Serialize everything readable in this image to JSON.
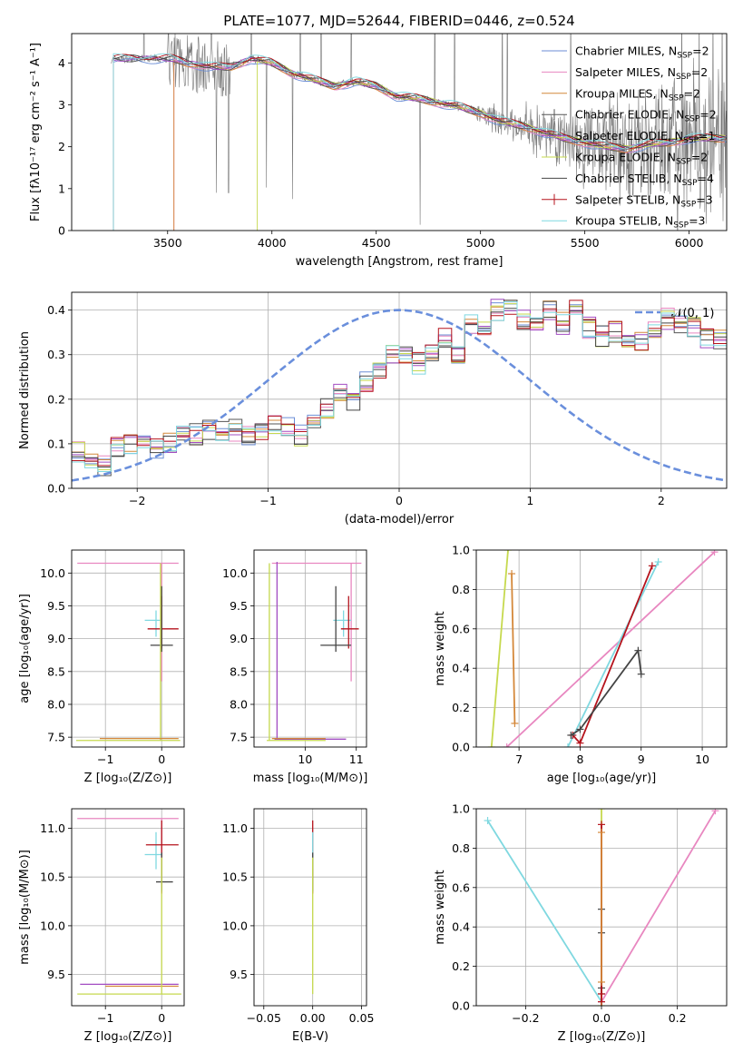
{
  "figure_title": "PLATE=1077, MJD=52644, FIBERID=0446, z=0.524",
  "colors": {
    "chabrier_miles": "#6b8ed6",
    "salpeter_miles": "#e887c0",
    "kroupa_miles": "#d4883a",
    "chabrier_elodie": "#555555",
    "salpeter_elodie": "#a24cc2",
    "kroupa_elodie": "#c6d94e",
    "chabrier_stelib": "#444444",
    "salpeter_stelib": "#b5131c",
    "kroupa_stelib": "#7fd8e0",
    "normal_curve": "#6a8fdc",
    "data_spectrum": "#777777"
  },
  "chart_data": [
    {
      "id": "spectrum",
      "type": "line",
      "title": "PLATE=1077, MJD=52644, FIBERID=0446, z=0.524",
      "xlabel": "wavelength [Angstrom, rest frame]",
      "ylabel": "Flux [f_λ 10^-17 erg cm^-2 s^-1 A^-1]",
      "xlim": [
        3040,
        6180
      ],
      "ylim": [
        0,
        4.7
      ],
      "xticks": [
        3500,
        4000,
        4500,
        5000,
        5500,
        6000
      ],
      "yticks": [
        0,
        1,
        2,
        3,
        4
      ],
      "grid": false,
      "legend_position": "top-right",
      "legend": [
        {
          "label": "Chabrier MILES, N_SSP=2",
          "color_key": "chabrier_miles",
          "marker": "line"
        },
        {
          "label": "Salpeter MILES, N_SSP=2",
          "color_key": "salpeter_miles",
          "marker": "line"
        },
        {
          "label": "Kroupa MILES, N_SSP=2",
          "color_key": "kroupa_miles",
          "marker": "line"
        },
        {
          "label": "Chabrier ELODIE, N_SSP=2",
          "color_key": "chabrier_elodie",
          "marker": "plus"
        },
        {
          "label": "Salpeter ELODIE, N_SSP=1",
          "color_key": "salpeter_elodie",
          "marker": "line"
        },
        {
          "label": "Kroupa ELODIE, N_SSP=2",
          "color_key": "kroupa_elodie",
          "marker": "line"
        },
        {
          "label": "Chabrier STELIB, N_SSP=4",
          "color_key": "chabrier_stelib",
          "marker": "line"
        },
        {
          "label": "Salpeter STELIB, N_SSP=3",
          "color_key": "salpeter_stelib",
          "marker": "plus"
        },
        {
          "label": "Kroupa STELIB, N_SSP=3",
          "color_key": "kroupa_stelib",
          "marker": "line"
        }
      ],
      "model_continuum": {
        "x": [
          3520,
          3600,
          3700,
          3800,
          3900,
          4000,
          4100,
          4200,
          4300,
          4400,
          4500,
          4600,
          4700,
          4800,
          4900,
          5000,
          5100,
          5200,
          5300,
          5400,
          5500,
          5600,
          5700,
          5800,
          5900,
          6000
        ],
        "y": [
          4.1,
          4.0,
          3.9,
          3.9,
          4.1,
          4.0,
          3.75,
          3.6,
          3.45,
          3.55,
          3.45,
          3.2,
          3.15,
          3.05,
          2.95,
          2.8,
          2.6,
          2.5,
          2.35,
          2.2,
          2.1,
          2.0,
          1.95,
          2.05,
          2.1,
          2.2
        ]
      },
      "model_cutoffs": [
        {
          "color_key": "kroupa_stelib",
          "x": 3240
        },
        {
          "color_key": "salpeter_stelib",
          "x": 3240
        },
        {
          "color_key": "salpeter_miles",
          "x": 3530
        },
        {
          "color_key": "kroupa_miles",
          "x": 3530
        },
        {
          "color_key": "kroupa_elodie",
          "x": 3930
        }
      ],
      "observed_spectrum_note": "noisy observed flux, grey"
    },
    {
      "id": "residual_histogram",
      "type": "histogram",
      "xlabel": "(data-model)/error",
      "ylabel": "Normed distribution",
      "xlim": [
        -2.5,
        2.5
      ],
      "ylim": [
        0,
        0.44
      ],
      "xticks": [
        -2,
        -1,
        0,
        1,
        2
      ],
      "yticks": [
        0.0,
        0.1,
        0.2,
        0.3,
        0.4
      ],
      "grid": true,
      "legend_position": "top-right",
      "legend": [
        {
          "label": "N(0, 1)",
          "color_key": "normal_curve",
          "style": "dashed"
        }
      ],
      "bin_edges_start": -2.5,
      "bin_width": 0.1,
      "base_distribution": [
        0.08,
        0.06,
        0.05,
        0.09,
        0.1,
        0.1,
        0.09,
        0.1,
        0.12,
        0.12,
        0.13,
        0.13,
        0.13,
        0.12,
        0.13,
        0.14,
        0.14,
        0.12,
        0.16,
        0.18,
        0.21,
        0.2,
        0.24,
        0.27,
        0.3,
        0.3,
        0.28,
        0.31,
        0.34,
        0.3,
        0.37,
        0.35,
        0.4,
        0.41,
        0.38,
        0.36,
        0.4,
        0.37,
        0.4,
        0.36,
        0.34,
        0.35,
        0.34,
        0.33,
        0.35,
        0.38,
        0.37,
        0.36,
        0.34,
        0.33,
        0.34,
        0.32,
        0.35,
        0.3,
        0.33,
        0.3,
        0.28,
        0.25,
        0.27,
        0.22,
        0.2,
        0.21,
        0.2,
        0.17,
        0.15,
        0.16,
        0.13,
        0.1,
        0.1,
        0.09,
        0.08,
        0.07,
        0.07,
        0.06,
        0.06,
        0.05,
        0.05,
        0.04,
        0.04,
        0.03,
        0.03,
        0.03,
        0.02,
        0.03,
        0.02,
        0.02,
        0.02,
        0.02,
        0.03,
        0.02,
        0.02,
        0.02,
        0.02,
        0.02,
        0.02,
        0.02,
        0.02,
        0.02,
        0.02,
        0.02
      ],
      "normal_curve": {
        "mu": 0,
        "sigma": 1,
        "peak": 0.4
      }
    },
    {
      "id": "age_vs_Z",
      "type": "scatter",
      "xlabel": "Z [log10(Z/Z_sun)]",
      "ylabel": "age [log10(age/yr)]",
      "xlim": [
        -1.6,
        0.4
      ],
      "ylim": [
        7.35,
        10.35
      ],
      "xticks": [
        -1,
        0
      ],
      "yticks": [
        7.5,
        8.0,
        8.5,
        9.0,
        9.5,
        10.0
      ],
      "grid": true,
      "errorbars": [
        {
          "color_key": "salpeter_miles",
          "x": 0.0,
          "y": 10.15,
          "xerr": [
            1.5,
            0.3
          ],
          "yerr": [
            1.8,
            0.0
          ]
        },
        {
          "color_key": "kroupa_stelib",
          "x": -0.1,
          "y": 9.28,
          "xerr": [
            0.2,
            0.1
          ],
          "yerr": [
            0.25,
            0.15
          ]
        },
        {
          "color_key": "salpeter_stelib",
          "x": 0.0,
          "y": 9.15,
          "xerr": [
            0.25,
            0.3
          ],
          "yerr": [
            0.3,
            0.5
          ]
        },
        {
          "color_key": "chabrier_stelib",
          "x": 0.0,
          "y": 8.9,
          "xerr": [
            0.2,
            0.2
          ],
          "yerr": [
            0.1,
            0.9
          ]
        },
        {
          "color_key": "kroupa_elodie",
          "x": -0.02,
          "y": 7.45,
          "xerr": [
            1.5,
            0.35
          ],
          "yerr": [
            0.0,
            2.7
          ]
        },
        {
          "color_key": "kroupa_miles",
          "x": 0.0,
          "y": 7.48,
          "xerr": [
            1.1,
            0.3
          ],
          "yerr": [
            0.0,
            0.0
          ]
        }
      ]
    },
    {
      "id": "age_vs_mass",
      "type": "scatter",
      "xlabel": "mass [log10(M/M_sun)]",
      "ylabel": "",
      "xlim": [
        9.0,
        11.2
      ],
      "ylim": [
        7.35,
        10.35
      ],
      "xticks": [
        10,
        11
      ],
      "yticks": [
        7.5,
        8.0,
        8.5,
        9.0,
        9.5,
        10.0
      ],
      "grid": true,
      "errorbars": [
        {
          "color_key": "salpeter_miles",
          "x": 10.9,
          "y": 10.15,
          "xerr": [
            1.55,
            0.2
          ],
          "yerr": [
            1.8,
            0.0
          ]
        },
        {
          "color_key": "kroupa_stelib",
          "x": 10.75,
          "y": 9.28,
          "xerr": [
            0.2,
            0.15
          ],
          "yerr": [
            0.25,
            0.15
          ]
        },
        {
          "color_key": "salpeter_stelib",
          "x": 10.85,
          "y": 9.15,
          "xerr": [
            0.15,
            0.2
          ],
          "yerr": [
            0.3,
            0.5
          ]
        },
        {
          "color_key": "chabrier_stelib",
          "x": 10.6,
          "y": 8.9,
          "xerr": [
            0.3,
            0.3
          ],
          "yerr": [
            0.1,
            0.9
          ]
        },
        {
          "color_key": "kroupa_elodie",
          "x": 9.3,
          "y": 7.45,
          "xerr": [
            0.05,
            1.1
          ],
          "yerr": [
            0.0,
            2.7
          ]
        },
        {
          "color_key": "salpeter_elodie",
          "x": 9.45,
          "y": 7.47,
          "xerr": [
            0.05,
            1.35
          ],
          "yerr": [
            0.0,
            2.7
          ]
        },
        {
          "color_key": "kroupa_miles",
          "x": 9.4,
          "y": 7.48,
          "xerr": [
            0.05,
            1.0
          ],
          "yerr": [
            0.0,
            0.0
          ]
        }
      ]
    },
    {
      "id": "weight_vs_age",
      "type": "line",
      "xlabel": "age [log10(age/yr)]",
      "ylabel": "mass weight",
      "xlim": [
        6.3,
        10.4
      ],
      "ylim": [
        0,
        1
      ],
      "xticks": [
        7,
        8,
        9,
        10
      ],
      "yticks": [
        0.0,
        0.2,
        0.4,
        0.6,
        0.8,
        1.0
      ],
      "grid": true,
      "series": [
        {
          "color_key": "kroupa_elodie",
          "x": [
            6.55,
            6.82
          ],
          "y": [
            0.0,
            1.0
          ]
        },
        {
          "color_key": "kroupa_miles",
          "x": [
            6.88,
            6.93
          ],
          "y": [
            0.88,
            0.12
          ]
        },
        {
          "color_key": "salpeter_miles",
          "x": [
            6.8,
            10.2
          ],
          "y": [
            0.0,
            0.99
          ]
        },
        {
          "color_key": "kroupa_stelib",
          "x": [
            7.8,
            9.28
          ],
          "y": [
            0.0,
            0.94
          ]
        },
        {
          "color_key": "salpeter_stelib",
          "x": [
            7.88,
            8.0,
            9.18
          ],
          "y": [
            0.06,
            0.02,
            0.92
          ]
        },
        {
          "color_key": "chabrier_stelib",
          "x": [
            7.85,
            8.0,
            8.95,
            9.0
          ],
          "y": [
            0.06,
            0.09,
            0.49,
            0.37
          ]
        }
      ]
    },
    {
      "id": "mass_vs_Z",
      "type": "scatter",
      "xlabel": "Z [log10(Z/Z_sun)]",
      "ylabel": "mass [log10(M/M_sun)]",
      "xlim": [
        -1.6,
        0.4
      ],
      "ylim": [
        9.18,
        11.2
      ],
      "xticks": [
        -1,
        0
      ],
      "yticks": [
        9.5,
        10.0,
        10.5,
        11.0
      ],
      "grid": true,
      "errorbars": [
        {
          "color_key": "salpeter_miles",
          "x": 0.0,
          "y": 11.1,
          "xerr": [
            1.5,
            0.3
          ],
          "yerr": [
            0.7,
            0.0
          ]
        },
        {
          "color_key": "kroupa_stelib",
          "x": -0.1,
          "y": 10.73,
          "xerr": [
            0.2,
            0.1
          ],
          "yerr": [
            0.15,
            0.23
          ]
        },
        {
          "color_key": "salpeter_stelib",
          "x": 0.0,
          "y": 10.83,
          "xerr": [
            0.28,
            0.3
          ],
          "yerr": [
            0.5,
            0.25
          ]
        },
        {
          "color_key": "chabrier_stelib",
          "x": 0.0,
          "y": 10.45,
          "xerr": [
            0.1,
            0.2
          ],
          "yerr": [
            0.1,
            0.3
          ]
        },
        {
          "color_key": "salpeter_elodie",
          "x": 0.0,
          "y": 9.4,
          "xerr": [
            1.45,
            0.3
          ],
          "yerr": [
            0.0,
            0.0
          ]
        },
        {
          "color_key": "kroupa_miles",
          "x": 0.0,
          "y": 9.38,
          "xerr": [
            1.0,
            0.3
          ],
          "yerr": [
            0.0,
            0.0
          ]
        },
        {
          "color_key": "kroupa_elodie",
          "x": 0.0,
          "y": 9.3,
          "xerr": [
            1.5,
            0.35
          ],
          "yerr": [
            0.0,
            1.4
          ]
        }
      ]
    },
    {
      "id": "mass_vs_ebv",
      "type": "scatter",
      "xlabel": "E(B-V)",
      "ylabel": "",
      "xlim": [
        -0.06,
        0.055
      ],
      "ylim": [
        9.18,
        11.2
      ],
      "xticks": [
        -0.05,
        0.0,
        0.05
      ],
      "yticks": [
        9.5,
        10.0,
        10.5,
        11.0
      ],
      "grid": true,
      "errorbars": [
        {
          "color_key": "salpeter_stelib",
          "x": 0.0,
          "y": 10.83,
          "xerr": [
            0,
            0
          ],
          "yerr": [
            0.5,
            0.25
          ]
        },
        {
          "color_key": "kroupa_stelib",
          "x": 0.0,
          "y": 10.73,
          "xerr": [
            0,
            0
          ],
          "yerr": [
            0.15,
            0.23
          ]
        },
        {
          "color_key": "chabrier_stelib",
          "x": 0.0,
          "y": 10.45,
          "xerr": [
            0,
            0
          ],
          "yerr": [
            0.1,
            0.3
          ]
        },
        {
          "color_key": "kroupa_elodie",
          "x": 0.0,
          "y": 9.3,
          "xerr": [
            0,
            0
          ],
          "yerr": [
            0.0,
            1.4
          ]
        }
      ]
    },
    {
      "id": "weight_vs_Z",
      "type": "line",
      "xlabel": "Z [log10(Z/Z_sun)]",
      "ylabel": "mass weight",
      "xlim": [
        -0.33,
        0.33
      ],
      "ylim": [
        0,
        1
      ],
      "xticks": [
        -0.2,
        0.0,
        0.2
      ],
      "yticks": [
        0.0,
        0.2,
        0.4,
        0.6,
        0.8,
        1.0
      ],
      "grid": true,
      "series": [
        {
          "color_key": "kroupa_stelib",
          "x": [
            -0.3,
            0.0
          ],
          "y": [
            0.94,
            0.02
          ]
        },
        {
          "color_key": "salpeter_miles",
          "x": [
            0.0,
            0.3
          ],
          "y": [
            0.02,
            0.99
          ]
        },
        {
          "color_key": "kroupa_elodie",
          "x": [
            0.0,
            0.0
          ],
          "y": [
            0.0,
            1.0
          ]
        },
        {
          "color_key": "chabrier_stelib",
          "x": [
            0.0,
            0.0,
            0.0,
            0.0
          ],
          "y": [
            0.06,
            0.09,
            0.49,
            0.37
          ]
        },
        {
          "color_key": "salpeter_stelib",
          "x": [
            0.0,
            0.0,
            0.0
          ],
          "y": [
            0.02,
            0.06,
            0.92
          ]
        },
        {
          "color_key": "kroupa_miles",
          "x": [
            0.0,
            0.0
          ],
          "y": [
            0.12,
            0.88
          ]
        }
      ]
    }
  ]
}
